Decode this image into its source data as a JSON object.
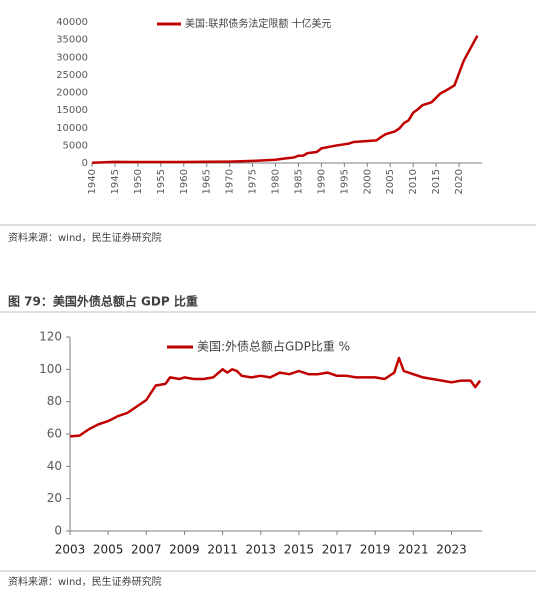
{
  "chart_data": [
    {
      "type": "line",
      "source": "资料来源：wind，民生证券研究院",
      "x": [
        1940,
        1945,
        1950,
        1955,
        1960,
        1965,
        1970,
        1975,
        1980,
        1982,
        1984,
        1985,
        1986,
        1987,
        1989,
        1990,
        1993,
        1996,
        1997,
        2002,
        2003,
        2004,
        2006,
        2007,
        2008,
        2009,
        2010,
        2011,
        2012,
        2014,
        2016,
        2017,
        2019,
        2021,
        2022,
        2024
      ],
      "series": [
        {
          "name": "美国:联邦债务法定限额  十亿美元",
          "color": "#c00000",
          "values": [
            49,
            300,
            275,
            281,
            293,
            328,
            395,
            595,
            935,
            1290,
            1573,
            2079,
            2111,
            2800,
            3123,
            4145,
            4900,
            5500,
            5950,
            6400,
            7384,
            8184,
            8965,
            9815,
            11315,
            12104,
            14294,
            15194,
            16394,
            17212,
            19800,
            20456,
            22030,
            28900,
            31381,
            36100
          ]
        }
      ],
      "xlim": [
        1940,
        2025
      ],
      "xticks": [
        1940,
        1945,
        1950,
        1955,
        1960,
        1965,
        1970,
        1975,
        1980,
        1985,
        1990,
        1995,
        2000,
        2005,
        2010,
        2015,
        2020
      ],
      "ylim": [
        0,
        40000
      ],
      "yticks": [
        0,
        5000,
        10000,
        15000,
        20000,
        25000,
        30000,
        35000,
        40000
      ]
    },
    {
      "type": "line",
      "title": "图 79：美国外债总额占 GDP 比重",
      "source": "资料来源：wind，民生证券研究院",
      "x": [
        2003,
        2003.5,
        2004,
        2004.5,
        2005,
        2005.5,
        2006,
        2006.5,
        2007,
        2007.5,
        2008,
        2008.25,
        2008.75,
        2009,
        2009.5,
        2010,
        2010.5,
        2011,
        2011.25,
        2011.5,
        2011.75,
        2012,
        2012.5,
        2013,
        2013.5,
        2014,
        2014.5,
        2015,
        2015.5,
        2016,
        2016.5,
        2017,
        2017.5,
        2018,
        2018.5,
        2019,
        2019.5,
        2020,
        2020.25,
        2020.5,
        2021,
        2021.5,
        2022,
        2022.5,
        2023,
        2023.5,
        2024,
        2024.25,
        2024.5
      ],
      "series": [
        {
          "name": "美国:外债总额占GDP比重 %",
          "color": "#c00000",
          "values": [
            58.5,
            59,
            63,
            66,
            68,
            71,
            73,
            77,
            81,
            90,
            91,
            95,
            94,
            95,
            94,
            94,
            95,
            100,
            98,
            100,
            99,
            96,
            95,
            96,
            95,
            98,
            97,
            99,
            97,
            97,
            98,
            96,
            96,
            95,
            95,
            95,
            94,
            98,
            107,
            99,
            97,
            95,
            94,
            93,
            92,
            93,
            93,
            89,
            93
          ]
        }
      ],
      "xlim": [
        2003,
        2024.6
      ],
      "xticks": [
        2003,
        2005,
        2007,
        2009,
        2011,
        2013,
        2015,
        2017,
        2019,
        2021,
        2023
      ],
      "ylim": [
        0,
        120
      ],
      "yticks": [
        0,
        20,
        40,
        60,
        80,
        100,
        120
      ]
    }
  ]
}
